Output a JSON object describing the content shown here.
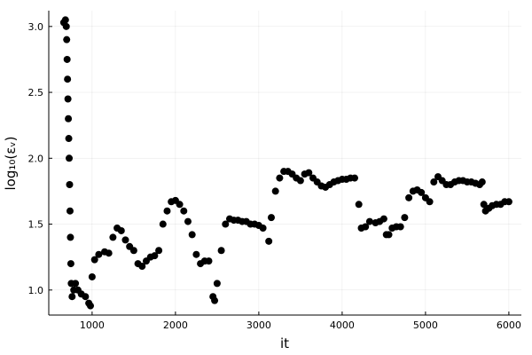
{
  "chart_data": {
    "type": "scatter",
    "xlabel": "it",
    "ylabel": "log₁₀(εᵥ)",
    "color": "#000000",
    "grid": true,
    "xlim": [
      480,
      6150
    ],
    "ylim": [
      0.81,
      3.12
    ],
    "xticks": [
      1000,
      2000,
      3000,
      4000,
      5000,
      6000
    ],
    "yticks": [
      {
        "value": 1,
        "label": "1.0"
      },
      1.5,
      {
        "value": 2,
        "label": "2.0"
      },
      2.5,
      {
        "value": 3,
        "label": "3.0"
      }
    ],
    "x": [
      660,
      680,
      690,
      695,
      700,
      705,
      710,
      715,
      720,
      725,
      730,
      735,
      740,
      745,
      750,
      760,
      780,
      800,
      830,
      870,
      920,
      960,
      980,
      1000,
      1030,
      1080,
      1150,
      1200,
      1250,
      1300,
      1350,
      1400,
      1450,
      1500,
      1550,
      1600,
      1650,
      1700,
      1750,
      1800,
      1850,
      1900,
      1950,
      2000,
      2050,
      2100,
      2150,
      2200,
      2250,
      2300,
      2350,
      2400,
      2450,
      2470,
      2500,
      2550,
      2600,
      2650,
      2700,
      2750,
      2800,
      2850,
      2900,
      2950,
      3000,
      3050,
      3120,
      3150,
      3200,
      3250,
      3300,
      3350,
      3400,
      3450,
      3500,
      3550,
      3600,
      3650,
      3700,
      3750,
      3800,
      3850,
      3900,
      3950,
      4000,
      4050,
      4100,
      4150,
      4200,
      4230,
      4280,
      4330,
      4400,
      4450,
      4500,
      4530,
      4560,
      4600,
      4650,
      4700,
      4750,
      4800,
      4850,
      4900,
      4950,
      5000,
      5050,
      5100,
      5150,
      5200,
      5250,
      5300,
      5350,
      5400,
      5450,
      5500,
      5550,
      5600,
      5650,
      5680,
      5700,
      5720,
      5760,
      5800,
      5850,
      5900,
      5950,
      6000
    ],
    "y": [
      3.03,
      3.05,
      3.0,
      2.9,
      2.75,
      2.6,
      2.45,
      2.3,
      2.15,
      2.0,
      1.8,
      1.6,
      1.4,
      1.2,
      1.05,
      0.95,
      1.0,
      1.05,
      1.0,
      0.97,
      0.95,
      0.9,
      0.88,
      1.1,
      1.23,
      1.27,
      1.29,
      1.28,
      1.4,
      1.47,
      1.45,
      1.38,
      1.33,
      1.3,
      1.2,
      1.18,
      1.22,
      1.25,
      1.26,
      1.3,
      1.5,
      1.6,
      1.67,
      1.68,
      1.65,
      1.6,
      1.52,
      1.42,
      1.27,
      1.2,
      1.22,
      1.22,
      0.95,
      0.92,
      1.05,
      1.3,
      1.5,
      1.54,
      1.53,
      1.53,
      1.52,
      1.52,
      1.5,
      1.5,
      1.49,
      1.47,
      1.37,
      1.55,
      1.75,
      1.85,
      1.9,
      1.9,
      1.88,
      1.85,
      1.83,
      1.88,
      1.89,
      1.85,
      1.82,
      1.79,
      1.78,
      1.8,
      1.82,
      1.83,
      1.84,
      1.84,
      1.85,
      1.85,
      1.65,
      1.47,
      1.48,
      1.52,
      1.51,
      1.52,
      1.54,
      1.42,
      1.42,
      1.47,
      1.48,
      1.48,
      1.55,
      1.7,
      1.75,
      1.76,
      1.74,
      1.7,
      1.67,
      1.82,
      1.86,
      1.83,
      1.8,
      1.8,
      1.82,
      1.83,
      1.83,
      1.82,
      1.82,
      1.81,
      1.8,
      1.82,
      1.65,
      1.6,
      1.62,
      1.64,
      1.65,
      1.65,
      1.67,
      1.67
    ]
  }
}
